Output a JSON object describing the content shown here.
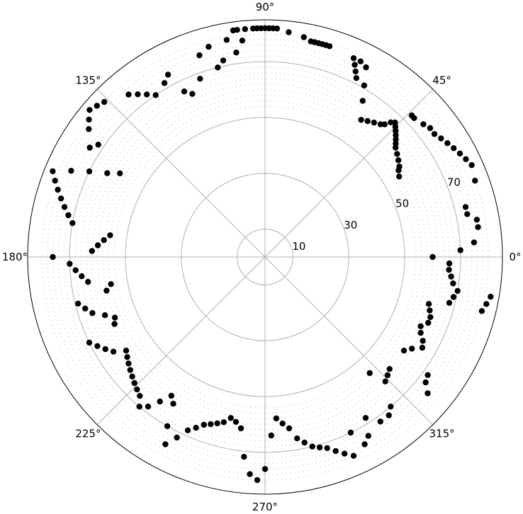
{
  "chart_data": {
    "type": "scatter",
    "projection": "polar",
    "angle_unit": "degrees",
    "radial_range": [
      0,
      85
    ],
    "grid": true,
    "angle_ticks": [
      {
        "value": 0,
        "label": "0°"
      },
      {
        "value": 45,
        "label": "45°"
      },
      {
        "value": 90,
        "label": "90°"
      },
      {
        "value": 135,
        "label": "135°"
      },
      {
        "value": 180,
        "label": "180°"
      },
      {
        "value": 225,
        "label": "225°"
      },
      {
        "value": 270,
        "label": "270°"
      },
      {
        "value": 315,
        "label": "315°"
      }
    ],
    "radial_ticks": [
      {
        "value": 10,
        "label": "10"
      },
      {
        "value": 30,
        "label": "30"
      },
      {
        "value": 50,
        "label": "50"
      },
      {
        "value": 70,
        "label": "70"
      }
    ],
    "marker_color": "#000000",
    "grid_color": "#b0b0b0",
    "dotted_ring_color": "#a9b8cc",
    "dotted_ring_range": [
      54,
      80
    ],
    "points": [
      {
        "theta": 80,
        "r": 80
      },
      {
        "theta": 84,
        "r": 81
      },
      {
        "theta": 87,
        "r": 82
      },
      {
        "theta": 88,
        "r": 82
      },
      {
        "theta": 89,
        "r": 82
      },
      {
        "theta": 90,
        "r": 82
      },
      {
        "theta": 91,
        "r": 82
      },
      {
        "theta": 92,
        "r": 82
      },
      {
        "theta": 93,
        "r": 82
      },
      {
        "theta": 95,
        "r": 82
      },
      {
        "theta": 97,
        "r": 82
      },
      {
        "theta": 98,
        "r": 82
      },
      {
        "theta": 100,
        "r": 79
      },
      {
        "theta": 105,
        "r": 78
      },
      {
        "theta": 78,
        "r": 79
      },
      {
        "theta": 77,
        "r": 79
      },
      {
        "theta": 76,
        "r": 79
      },
      {
        "theta": 75,
        "r": 79
      },
      {
        "theta": 74,
        "r": 79
      },
      {
        "theta": 73,
        "r": 79
      },
      {
        "theta": 66,
        "r": 78
      },
      {
        "theta": 65,
        "r": 76
      },
      {
        "theta": 64,
        "r": 74
      },
      {
        "theta": 63,
        "r": 72
      },
      {
        "theta": 64,
        "r": 78
      },
      {
        "theta": 62,
        "r": 77
      },
      {
        "theta": 60,
        "r": 71
      },
      {
        "theta": 58,
        "r": 66
      },
      {
        "theta": 55,
        "r": 60
      },
      {
        "theta": 53,
        "r": 61
      },
      {
        "theta": 51,
        "r": 62
      },
      {
        "theta": 49,
        "r": 63
      },
      {
        "theta": 48,
        "r": 64
      },
      {
        "theta": 47,
        "r": 66
      },
      {
        "theta": 46,
        "r": 67
      },
      {
        "theta": 45,
        "r": 66
      },
      {
        "theta": 44,
        "r": 65
      },
      {
        "theta": 43,
        "r": 64
      },
      {
        "theta": 42,
        "r": 63
      },
      {
        "theta": 41,
        "r": 62
      },
      {
        "theta": 40,
        "r": 61
      },
      {
        "theta": 38,
        "r": 60
      },
      {
        "theta": 36,
        "r": 59
      },
      {
        "theta": 34,
        "r": 58
      },
      {
        "theta": 33,
        "r": 57
      },
      {
        "theta": 31,
        "r": 56
      },
      {
        "theta": 44,
        "r": 73
      },
      {
        "theta": 43,
        "r": 73
      },
      {
        "theta": 40,
        "r": 74
      },
      {
        "theta": 38,
        "r": 75
      },
      {
        "theta": 36,
        "r": 75
      },
      {
        "theta": 34,
        "r": 76
      },
      {
        "theta": 32,
        "r": 77
      },
      {
        "theta": 30,
        "r": 78
      },
      {
        "theta": 28,
        "r": 79
      },
      {
        "theta": 26,
        "r": 80
      },
      {
        "theta": 24,
        "r": 81
      },
      {
        "theta": 20,
        "r": 80
      },
      {
        "theta": 14,
        "r": 74
      },
      {
        "theta": 12,
        "r": 74
      },
      {
        "theta": 10,
        "r": 77
      },
      {
        "theta": 8,
        "r": 77
      },
      {
        "theta": 4,
        "r": 75
      },
      {
        "theta": 2,
        "r": 70
      },
      {
        "theta": 0,
        "r": 60
      },
      {
        "theta": -2,
        "r": 66
      },
      {
        "theta": -4,
        "r": 66
      },
      {
        "theta": -6,
        "r": 67
      },
      {
        "theta": -8,
        "r": 68
      },
      {
        "theta": -10,
        "r": 70
      },
      {
        "theta": -12,
        "r": 69
      },
      {
        "theta": -14,
        "r": 68
      },
      {
        "theta": -10,
        "r": 82
      },
      {
        "theta": -12,
        "r": 81
      },
      {
        "theta": -14,
        "r": 80
      },
      {
        "theta": -16,
        "r": 61
      },
      {
        "theta": -18,
        "r": 62
      },
      {
        "theta": -20,
        "r": 63
      },
      {
        "theta": -22,
        "r": 63
      },
      {
        "theta": -24,
        "r": 61
      },
      {
        "theta": -26,
        "r": 62
      },
      {
        "theta": -28,
        "r": 64
      },
      {
        "theta": -30,
        "r": 65
      },
      {
        "theta": -32,
        "r": 62
      },
      {
        "theta": -34,
        "r": 60
      },
      {
        "theta": -36,
        "r": 72
      },
      {
        "theta": -38,
        "r": 73
      },
      {
        "theta": -40,
        "r": 76
      },
      {
        "theta": -42,
        "r": 60
      },
      {
        "theta": -44,
        "r": 61
      },
      {
        "theta": -46,
        "r": 62
      },
      {
        "theta": -48,
        "r": 56
      },
      {
        "theta": -50,
        "r": 70
      },
      {
        "theta": -52,
        "r": 72
      },
      {
        "theta": -55,
        "r": 72
      },
      {
        "theta": -58,
        "r": 68
      },
      {
        "theta": -60,
        "r": 74
      },
      {
        "theta": -62,
        "r": 76
      },
      {
        "theta": -64,
        "r": 70
      },
      {
        "theta": -66,
        "r": 78
      },
      {
        "theta": -68,
        "r": 76
      },
      {
        "theta": -70,
        "r": 74
      },
      {
        "theta": -72,
        "r": 72
      },
      {
        "theta": -74,
        "r": 71
      },
      {
        "theta": -76,
        "r": 70
      },
      {
        "theta": -78,
        "r": 68
      },
      {
        "theta": -80,
        "r": 66
      },
      {
        "theta": -82,
        "r": 62
      },
      {
        "theta": -84,
        "r": 60
      },
      {
        "theta": -86,
        "r": 58
      },
      {
        "theta": -88,
        "r": 64
      },
      {
        "theta": -90,
        "r": 76
      },
      {
        "theta": -92,
        "r": 80
      },
      {
        "theta": -94,
        "r": 78
      },
      {
        "theta": -96,
        "r": 72
      },
      {
        "theta": -98,
        "r": 62
      },
      {
        "theta": -100,
        "r": 60
      },
      {
        "theta": -102,
        "r": 59
      },
      {
        "theta": -104,
        "r": 61
      },
      {
        "theta": -106,
        "r": 62
      },
      {
        "theta": -108,
        "r": 63
      },
      {
        "theta": -110,
        "r": 64
      },
      {
        "theta": -112,
        "r": 66
      },
      {
        "theta": -114,
        "r": 68
      },
      {
        "theta": -116,
        "r": 72
      },
      {
        "theta": -118,
        "r": 76
      },
      {
        "theta": -120,
        "r": 70
      },
      {
        "theta": -122,
        "r": 62
      },
      {
        "theta": -124,
        "r": 60
      },
      {
        "theta": -126,
        "r": 64
      },
      {
        "theta": -128,
        "r": 68
      },
      {
        "theta": -130,
        "r": 70
      },
      {
        "theta": -132,
        "r": 67
      },
      {
        "theta": -134,
        "r": 66
      },
      {
        "theta": -136,
        "r": 65
      },
      {
        "theta": -138,
        "r": 64
      },
      {
        "theta": -140,
        "r": 63
      },
      {
        "theta": -142,
        "r": 62
      },
      {
        "theta": -144,
        "r": 61
      },
      {
        "theta": -146,
        "r": 60
      },
      {
        "theta": -148,
        "r": 64
      },
      {
        "theta": -150,
        "r": 66
      },
      {
        "theta": -152,
        "r": 68
      },
      {
        "theta": -154,
        "r": 70
      },
      {
        "theta": -156,
        "r": 59
      },
      {
        "theta": -158,
        "r": 58
      },
      {
        "theta": -160,
        "r": 61
      },
      {
        "theta": -162,
        "r": 65
      },
      {
        "theta": -164,
        "r": 67
      },
      {
        "theta": -166,
        "r": 69
      },
      {
        "theta": -168,
        "r": 58
      },
      {
        "theta": -170,
        "r": 56
      },
      {
        "theta": -172,
        "r": 64
      },
      {
        "theta": -174,
        "r": 66
      },
      {
        "theta": -176,
        "r": 68
      },
      {
        "theta": -178,
        "r": 70
      },
      {
        "theta": 180,
        "r": 76
      },
      {
        "theta": 178,
        "r": 62
      },
      {
        "theta": 176,
        "r": 60
      },
      {
        "theta": 174,
        "r": 58
      },
      {
        "theta": 172,
        "r": 56
      },
      {
        "theta": 170,
        "r": 70
      },
      {
        "theta": 168,
        "r": 72
      },
      {
        "theta": 166,
        "r": 74
      },
      {
        "theta": 164,
        "r": 76
      },
      {
        "theta": 162,
        "r": 78
      },
      {
        "theta": 160,
        "r": 80
      },
      {
        "theta": 158,
        "r": 82
      },
      {
        "theta": 156,
        "r": 76
      },
      {
        "theta": 154,
        "r": 70
      },
      {
        "theta": 152,
        "r": 64
      },
      {
        "theta": 150,
        "r": 60
      },
      {
        "theta": 148,
        "r": 74
      },
      {
        "theta": 146,
        "r": 72
      },
      {
        "theta": 144,
        "r": 78
      },
      {
        "theta": 142,
        "r": 80
      },
      {
        "theta": 140,
        "r": 82
      },
      {
        "theta": 138,
        "r": 81
      },
      {
        "theta": 136,
        "r": 80
      },
      {
        "theta": 130,
        "r": 76
      },
      {
        "theta": 128,
        "r": 74
      },
      {
        "theta": 126,
        "r": 72
      },
      {
        "theta": 124,
        "r": 70
      },
      {
        "theta": 120,
        "r": 72
      },
      {
        "theta": 118,
        "r": 74
      },
      {
        "theta": 116,
        "r": 66
      },
      {
        "theta": 114,
        "r": 64
      },
      {
        "theta": 110,
        "r": 68
      },
      {
        "theta": 108,
        "r": 76
      },
      {
        "theta": 104,
        "r": 70
      },
      {
        "theta": 102,
        "r": 72
      },
      {
        "theta": 98,
        "r": 74
      },
      {
        "theta": 96,
        "r": 78
      }
    ]
  }
}
